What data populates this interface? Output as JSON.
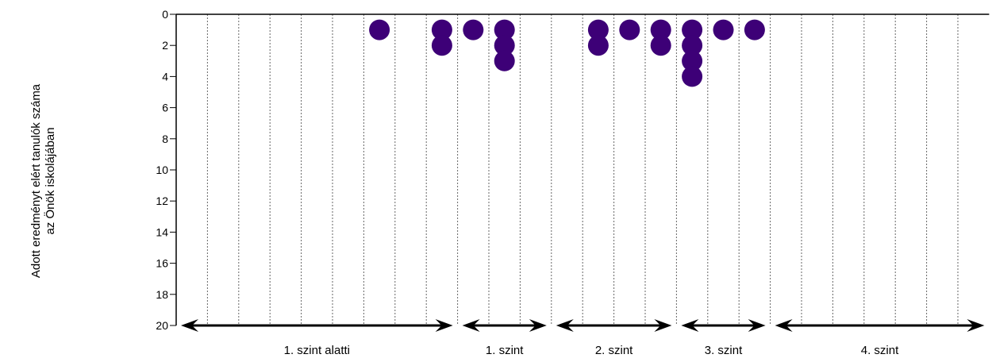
{
  "chart_data": {
    "type": "scatter",
    "ylabel": [
      "Adott eredményt elért tanulók száma",
      "az Önök iskolájában"
    ],
    "yticks": [
      0,
      2,
      4,
      6,
      8,
      10,
      12,
      14,
      16,
      18,
      20
    ],
    "ylim": [
      0,
      20
    ],
    "y_inverted": true,
    "grid": "vertical-dotted",
    "columns": 26,
    "marker_color": "#3d0077",
    "points": [
      {
        "col": 6,
        "count": 1
      },
      {
        "col": 8,
        "count": 2
      },
      {
        "col": 9,
        "count": 1
      },
      {
        "col": 10,
        "count": 3
      },
      {
        "col": 13,
        "count": 2
      },
      {
        "col": 14,
        "count": 1
      },
      {
        "col": 15,
        "count": 2
      },
      {
        "col": 16,
        "count": 4
      },
      {
        "col": 17,
        "count": 1
      },
      {
        "col": 18,
        "count": 1
      }
    ],
    "levels": [
      {
        "label": "1. szint alatti",
        "from_col": 0,
        "to_col": 9
      },
      {
        "label": "1. szint",
        "from_col": 9,
        "to_col": 12
      },
      {
        "label": "2. szint",
        "from_col": 12,
        "to_col": 16
      },
      {
        "label": "3. szint",
        "from_col": 16,
        "to_col": 19
      },
      {
        "label": "4. szint",
        "from_col": 19,
        "to_col": 26
      }
    ]
  }
}
